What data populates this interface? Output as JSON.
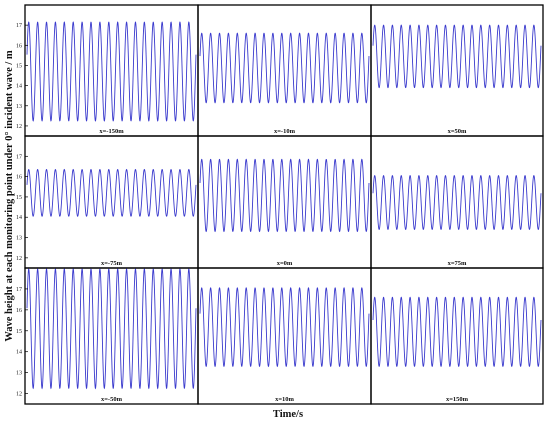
{
  "chart_data": {
    "type": "line",
    "title": "",
    "xlabel": "Time/s",
    "ylabel": "Wave height at each monitoring point under 0° incident wave / m",
    "ylim": [
      11.5,
      18.0
    ],
    "yticks": [
      "12",
      "13",
      "14",
      "15",
      "16",
      "17"
    ],
    "grid": false,
    "layout": "3x3 panels sharing x and y axes",
    "series_color": "#3a3acd",
    "cycles": 19,
    "panels": [
      {
        "label": "x=-150m",
        "min": 12.25,
        "max": 17.15
      },
      {
        "label": "x=-10m",
        "min": 13.15,
        "max": 16.6
      },
      {
        "label": "x=50m",
        "min": 13.9,
        "max": 17.0
      },
      {
        "label": "x=-75m",
        "min": 14.05,
        "max": 16.35
      },
      {
        "label": "x=0m",
        "min": 13.3,
        "max": 16.85
      },
      {
        "label": "x=75m",
        "min": 13.4,
        "max": 16.05
      },
      {
        "label": "x=-50m",
        "min": 12.25,
        "max": 17.95
      },
      {
        "label": "x=10m",
        "min": 13.3,
        "max": 17.05
      },
      {
        "label": "x=150m",
        "min": 13.3,
        "max": 16.6
      }
    ]
  }
}
